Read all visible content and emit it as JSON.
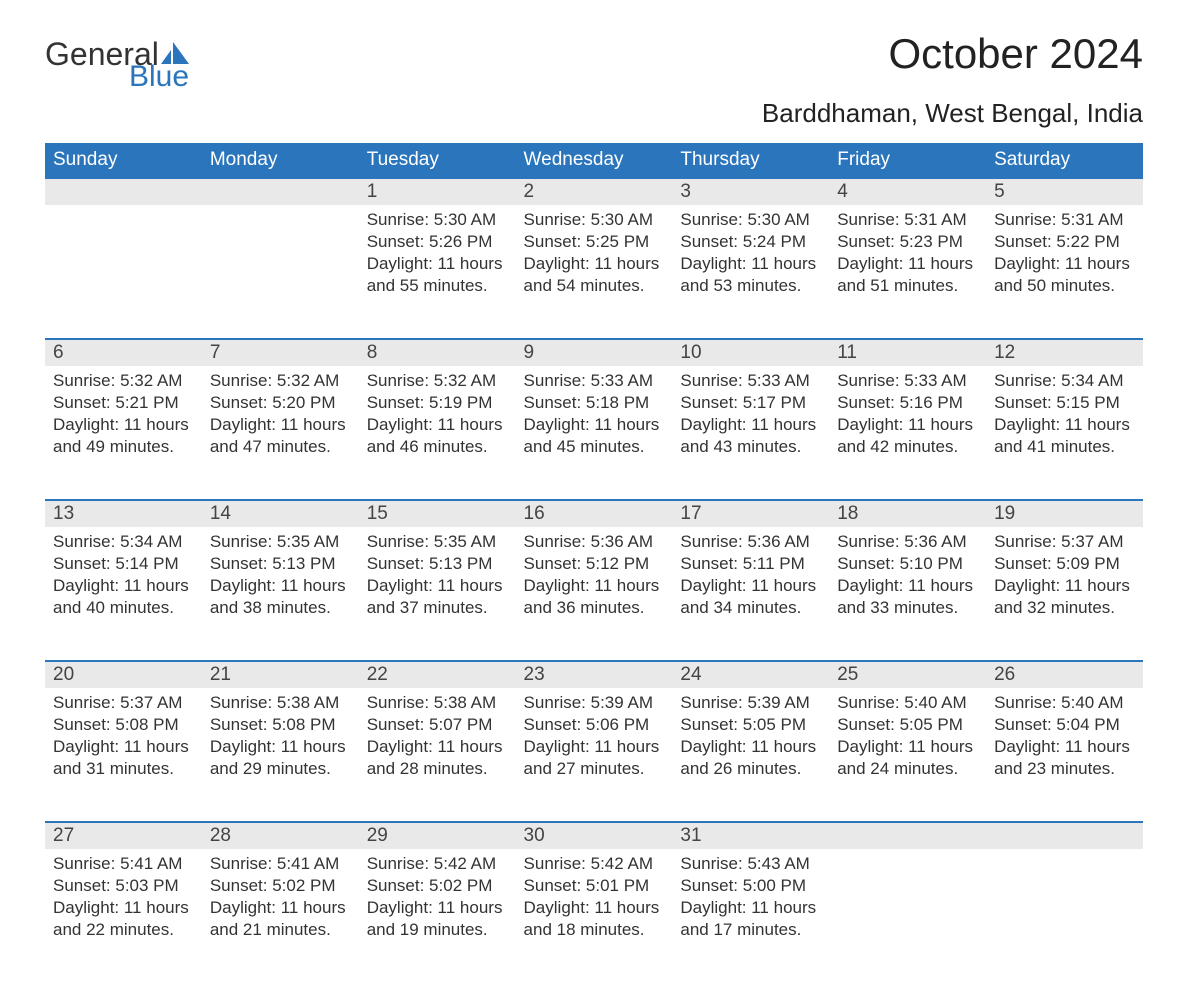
{
  "logo": {
    "word1": "General",
    "word2": "Blue",
    "icon_color": "#2a75bb"
  },
  "title": "October 2024",
  "location": "Barddhaman, West Bengal, India",
  "header_bg": "#2a75bb",
  "header_text": "#ffffff",
  "daynum_bg": "#e9e9e9",
  "row_border": "#2a75bb",
  "day_headers": [
    "Sunday",
    "Monday",
    "Tuesday",
    "Wednesday",
    "Thursday",
    "Friday",
    "Saturday"
  ],
  "weeks": [
    [
      null,
      null,
      {
        "n": "1",
        "sunrise": "5:30 AM",
        "sunset": "5:26 PM",
        "dl1": "11 hours",
        "dl2": "and 55 minutes."
      },
      {
        "n": "2",
        "sunrise": "5:30 AM",
        "sunset": "5:25 PM",
        "dl1": "11 hours",
        "dl2": "and 54 minutes."
      },
      {
        "n": "3",
        "sunrise": "5:30 AM",
        "sunset": "5:24 PM",
        "dl1": "11 hours",
        "dl2": "and 53 minutes."
      },
      {
        "n": "4",
        "sunrise": "5:31 AM",
        "sunset": "5:23 PM",
        "dl1": "11 hours",
        "dl2": "and 51 minutes."
      },
      {
        "n": "5",
        "sunrise": "5:31 AM",
        "sunset": "5:22 PM",
        "dl1": "11 hours",
        "dl2": "and 50 minutes."
      }
    ],
    [
      {
        "n": "6",
        "sunrise": "5:32 AM",
        "sunset": "5:21 PM",
        "dl1": "11 hours",
        "dl2": "and 49 minutes."
      },
      {
        "n": "7",
        "sunrise": "5:32 AM",
        "sunset": "5:20 PM",
        "dl1": "11 hours",
        "dl2": "and 47 minutes."
      },
      {
        "n": "8",
        "sunrise": "5:32 AM",
        "sunset": "5:19 PM",
        "dl1": "11 hours",
        "dl2": "and 46 minutes."
      },
      {
        "n": "9",
        "sunrise": "5:33 AM",
        "sunset": "5:18 PM",
        "dl1": "11 hours",
        "dl2": "and 45 minutes."
      },
      {
        "n": "10",
        "sunrise": "5:33 AM",
        "sunset": "5:17 PM",
        "dl1": "11 hours",
        "dl2": "and 43 minutes."
      },
      {
        "n": "11",
        "sunrise": "5:33 AM",
        "sunset": "5:16 PM",
        "dl1": "11 hours",
        "dl2": "and 42 minutes."
      },
      {
        "n": "12",
        "sunrise": "5:34 AM",
        "sunset": "5:15 PM",
        "dl1": "11 hours",
        "dl2": "and 41 minutes."
      }
    ],
    [
      {
        "n": "13",
        "sunrise": "5:34 AM",
        "sunset": "5:14 PM",
        "dl1": "11 hours",
        "dl2": "and 40 minutes."
      },
      {
        "n": "14",
        "sunrise": "5:35 AM",
        "sunset": "5:13 PM",
        "dl1": "11 hours",
        "dl2": "and 38 minutes."
      },
      {
        "n": "15",
        "sunrise": "5:35 AM",
        "sunset": "5:13 PM",
        "dl1": "11 hours",
        "dl2": "and 37 minutes."
      },
      {
        "n": "16",
        "sunrise": "5:36 AM",
        "sunset": "5:12 PM",
        "dl1": "11 hours",
        "dl2": "and 36 minutes."
      },
      {
        "n": "17",
        "sunrise": "5:36 AM",
        "sunset": "5:11 PM",
        "dl1": "11 hours",
        "dl2": "and 34 minutes."
      },
      {
        "n": "18",
        "sunrise": "5:36 AM",
        "sunset": "5:10 PM",
        "dl1": "11 hours",
        "dl2": "and 33 minutes."
      },
      {
        "n": "19",
        "sunrise": "5:37 AM",
        "sunset": "5:09 PM",
        "dl1": "11 hours",
        "dl2": "and 32 minutes."
      }
    ],
    [
      {
        "n": "20",
        "sunrise": "5:37 AM",
        "sunset": "5:08 PM",
        "dl1": "11 hours",
        "dl2": "and 31 minutes."
      },
      {
        "n": "21",
        "sunrise": "5:38 AM",
        "sunset": "5:08 PM",
        "dl1": "11 hours",
        "dl2": "and 29 minutes."
      },
      {
        "n": "22",
        "sunrise": "5:38 AM",
        "sunset": "5:07 PM",
        "dl1": "11 hours",
        "dl2": "and 28 minutes."
      },
      {
        "n": "23",
        "sunrise": "5:39 AM",
        "sunset": "5:06 PM",
        "dl1": "11 hours",
        "dl2": "and 27 minutes."
      },
      {
        "n": "24",
        "sunrise": "5:39 AM",
        "sunset": "5:05 PM",
        "dl1": "11 hours",
        "dl2": "and 26 minutes."
      },
      {
        "n": "25",
        "sunrise": "5:40 AM",
        "sunset": "5:05 PM",
        "dl1": "11 hours",
        "dl2": "and 24 minutes."
      },
      {
        "n": "26",
        "sunrise": "5:40 AM",
        "sunset": "5:04 PM",
        "dl1": "11 hours",
        "dl2": "and 23 minutes."
      }
    ],
    [
      {
        "n": "27",
        "sunrise": "5:41 AM",
        "sunset": "5:03 PM",
        "dl1": "11 hours",
        "dl2": "and 22 minutes."
      },
      {
        "n": "28",
        "sunrise": "5:41 AM",
        "sunset": "5:02 PM",
        "dl1": "11 hours",
        "dl2": "and 21 minutes."
      },
      {
        "n": "29",
        "sunrise": "5:42 AM",
        "sunset": "5:02 PM",
        "dl1": "11 hours",
        "dl2": "and 19 minutes."
      },
      {
        "n": "30",
        "sunrise": "5:42 AM",
        "sunset": "5:01 PM",
        "dl1": "11 hours",
        "dl2": "and 18 minutes."
      },
      {
        "n": "31",
        "sunrise": "5:43 AM",
        "sunset": "5:00 PM",
        "dl1": "11 hours",
        "dl2": "and 17 minutes."
      },
      null,
      null
    ]
  ],
  "labels": {
    "sunrise": "Sunrise: ",
    "sunset": "Sunset: ",
    "daylight": "Daylight: "
  }
}
